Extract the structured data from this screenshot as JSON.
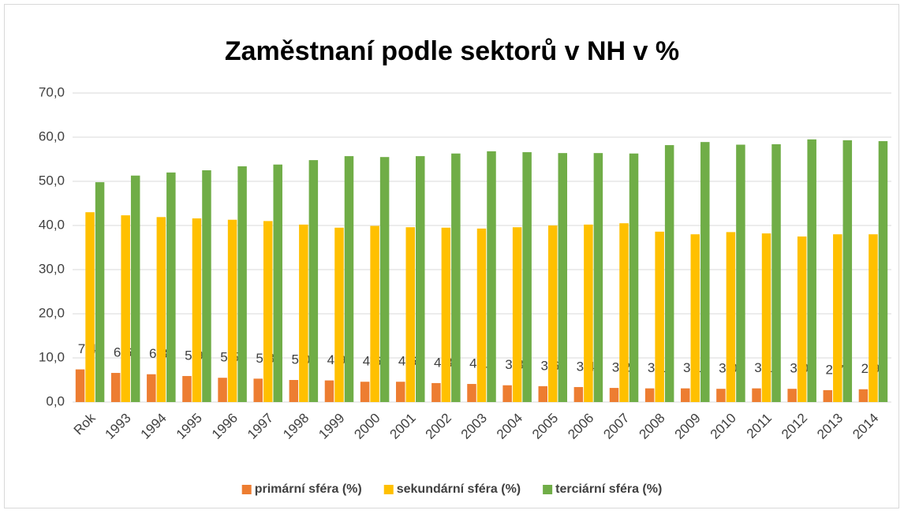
{
  "chart_data": {
    "type": "bar",
    "title": "Zaměstnaní podle sektorů v NH v %",
    "categories": [
      "Rok",
      "1993",
      "1994",
      "1995",
      "1996",
      "1997",
      "1998",
      "1999",
      "2000",
      "2001",
      "2002",
      "2003",
      "2004",
      "2005",
      "2006",
      "2007",
      "2008",
      "2009",
      "2010",
      "2011",
      "2012",
      "2013",
      "2014"
    ],
    "series": [
      {
        "name": "primární sféra (%)",
        "color": "#ed7d31",
        "values": [
          7.4,
          6.6,
          6.3,
          5.9,
          5.5,
          5.3,
          5.0,
          4.9,
          4.6,
          4.6,
          4.3,
          4.1,
          3.8,
          3.6,
          3.4,
          3.2,
          3.1,
          3.1,
          3.0,
          3.1,
          3.0,
          2.7,
          2.9
        ],
        "value_labels": [
          "7,4",
          "6,6",
          "6,3",
          "5,9",
          "5,5",
          "5,3",
          "5,0",
          "4,9",
          "4,6",
          "4,6",
          "4,3",
          "4,1",
          "3,8",
          "3,6",
          "3,4",
          "3,2",
          "3,1",
          "3,1",
          "3,0",
          "3,1",
          "3,0",
          "2,7",
          "2,9"
        ]
      },
      {
        "name": "sekundární sféra (%)",
        "color": "#ffc000",
        "values": [
          43.0,
          42.3,
          41.9,
          41.6,
          41.3,
          41.0,
          40.2,
          39.5,
          39.9,
          39.6,
          39.5,
          39.3,
          39.6,
          40.0,
          40.2,
          40.5,
          38.6,
          38.0,
          38.5,
          38.2,
          37.5,
          38.0,
          38.0
        ]
      },
      {
        "name": "terciární sféra (%)",
        "color": "#70ad47",
        "values": [
          49.8,
          51.3,
          52.0,
          52.5,
          53.4,
          53.8,
          54.8,
          55.7,
          55.5,
          55.7,
          56.3,
          56.8,
          56.6,
          56.4,
          56.4,
          56.3,
          58.2,
          58.9,
          58.3,
          58.4,
          59.5,
          59.3,
          59.1
        ]
      }
    ],
    "ylim": [
      0,
      70
    ],
    "yticks": [
      {
        "value": 0,
        "label": "0,0"
      },
      {
        "value": 10,
        "label": "10,0"
      },
      {
        "value": 20,
        "label": "20,0"
      },
      {
        "value": 30,
        "label": "30,0"
      },
      {
        "value": 40,
        "label": "40,0"
      },
      {
        "value": 50,
        "label": "50,0"
      },
      {
        "value": 60,
        "label": "60,0"
      },
      {
        "value": 70,
        "label": "70,0"
      }
    ],
    "grid": true,
    "legend": "bottom"
  }
}
